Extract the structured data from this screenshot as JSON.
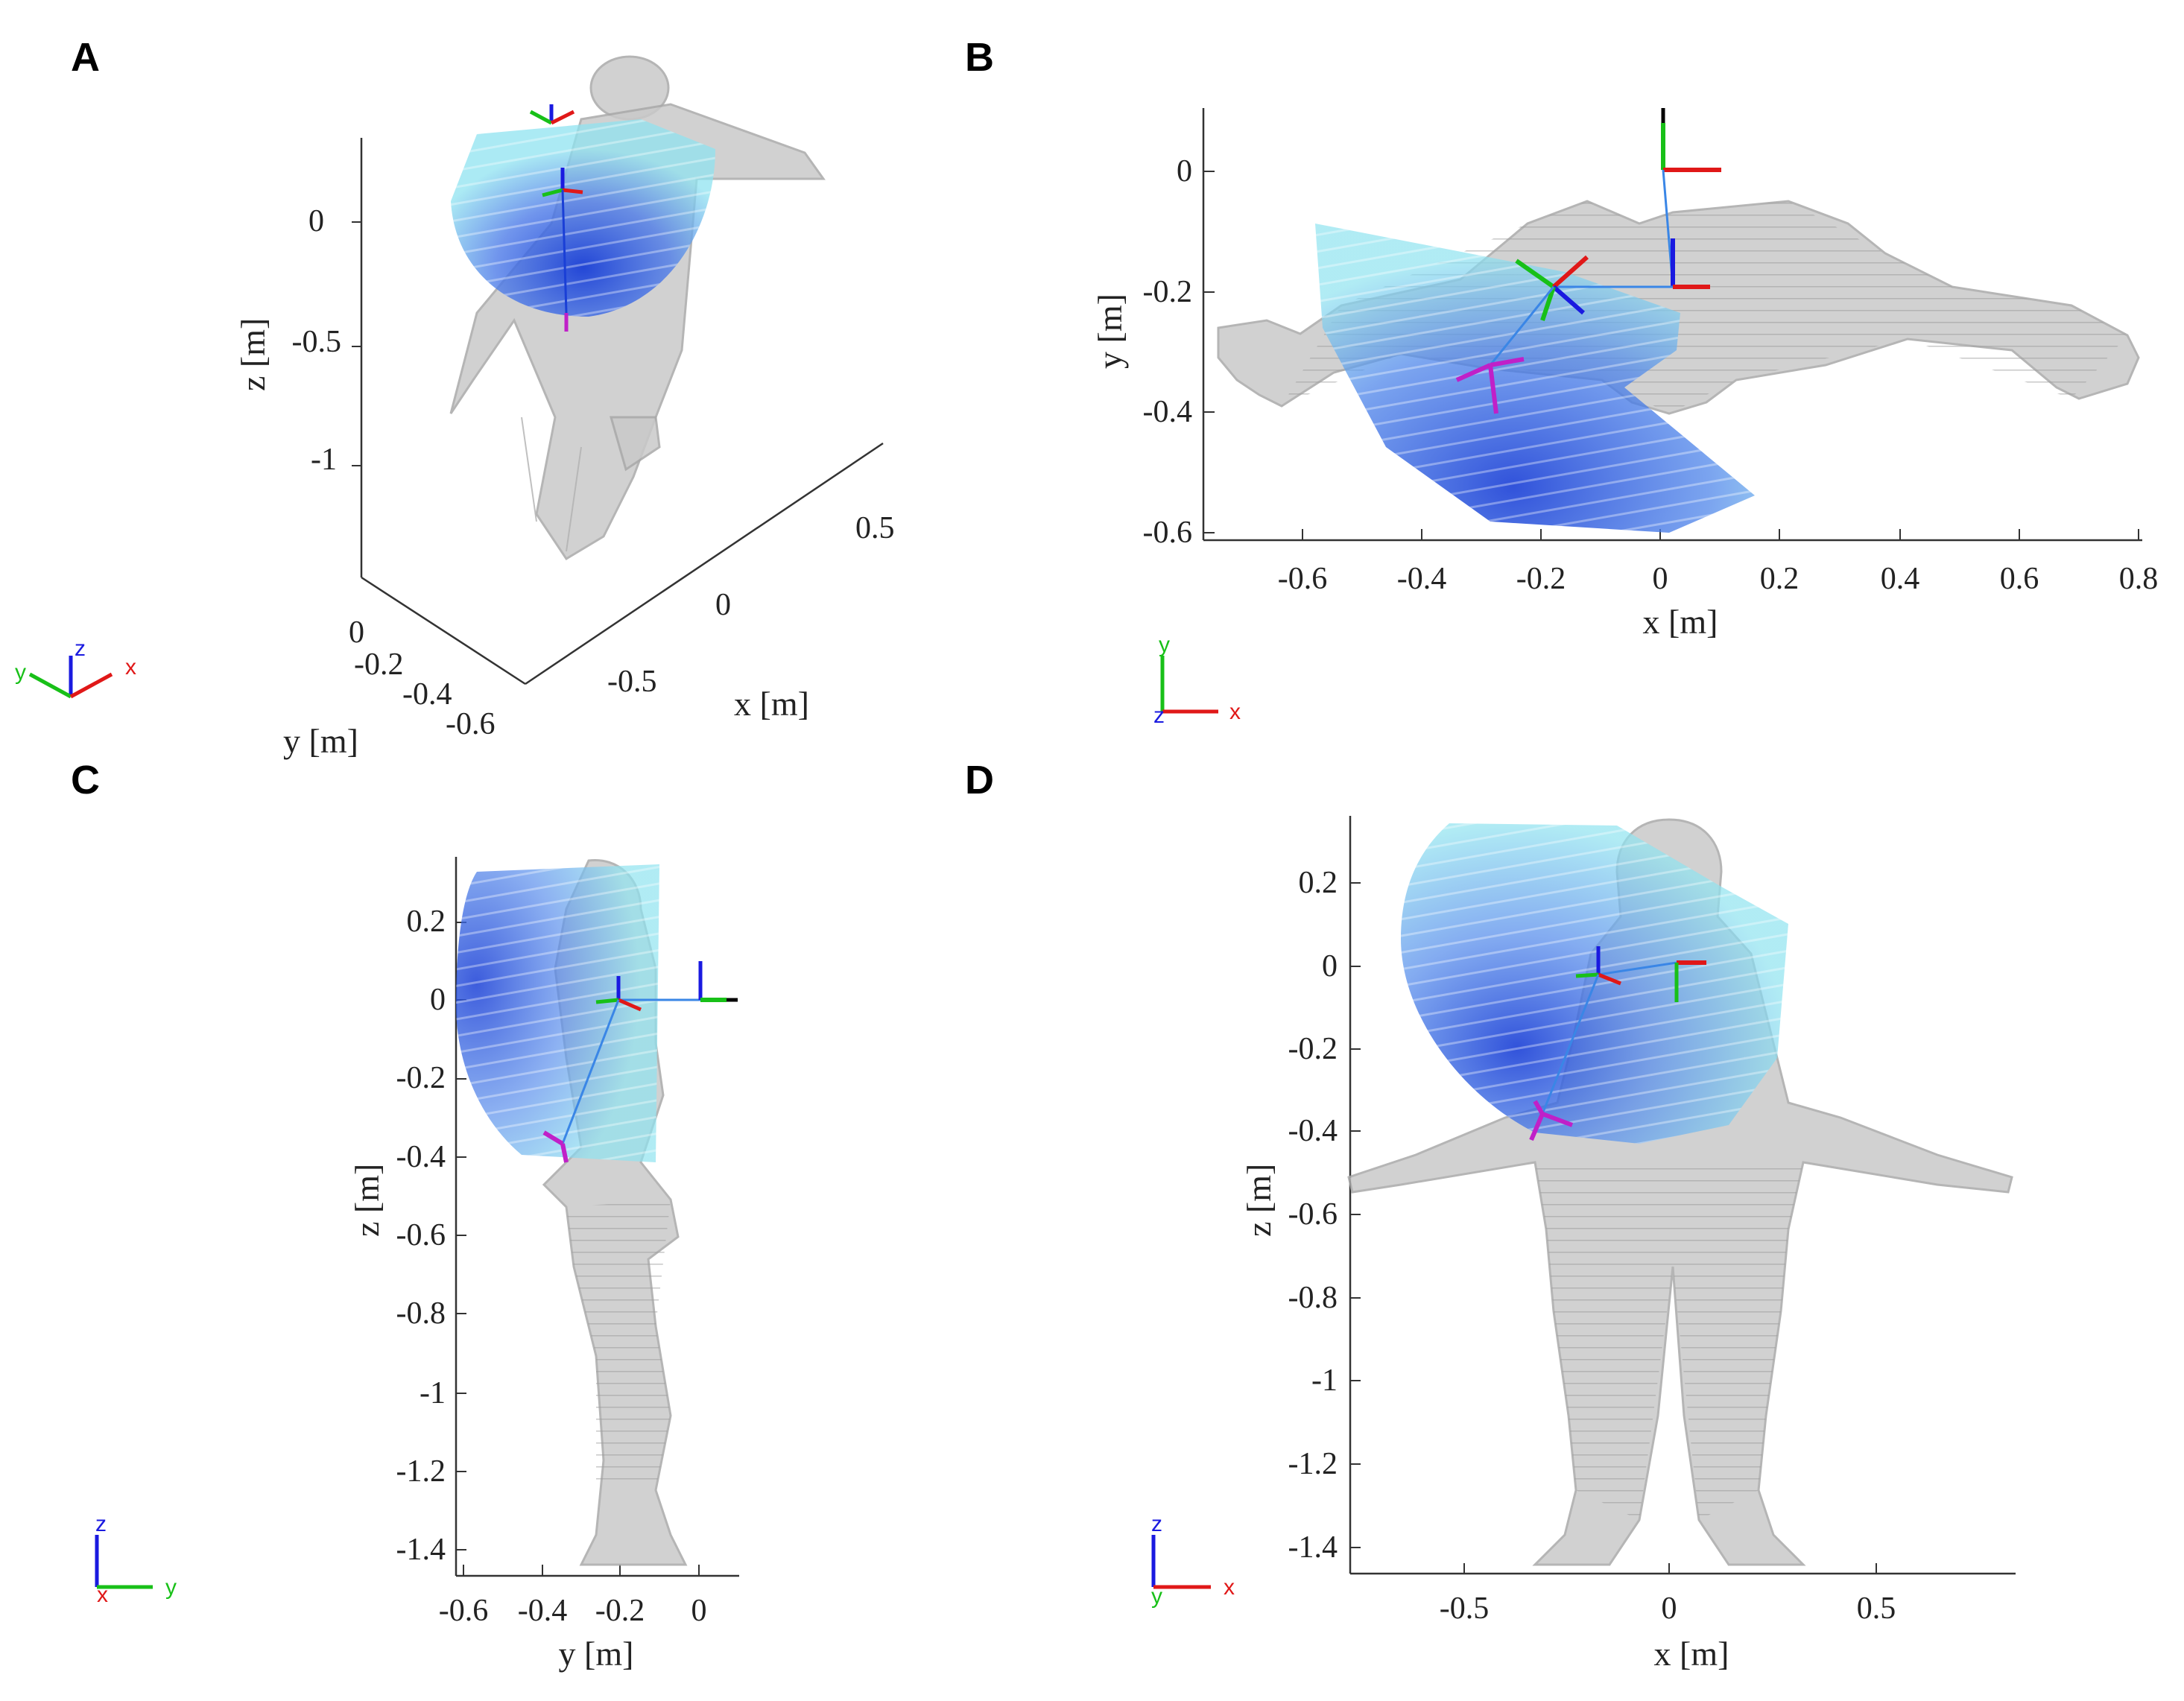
{
  "panels": {
    "A": {
      "label": "A",
      "z_ticks": [
        "0",
        "-0.5",
        "-1"
      ],
      "z_label": "z [m]",
      "x_ticks": [
        "0.5",
        "0",
        "-0.5"
      ],
      "x_label": "x [m]",
      "y_ticks": [
        "0",
        "-0.2",
        "-0.4",
        "-0.6"
      ],
      "y_label": "y [m]",
      "triad": {
        "a": "z",
        "b": "y",
        "c": "x"
      }
    },
    "B": {
      "label": "B",
      "x_ticks": [
        "-0.6",
        "-0.4",
        "-0.2",
        "0",
        "0.2",
        "0.4",
        "0.6",
        "0.8"
      ],
      "x_label": "x [m]",
      "y_ticks": [
        "0",
        "-0.2",
        "-0.4",
        "-0.6"
      ],
      "y_label": "y [m]",
      "triad": {
        "a": "y",
        "b": "z",
        "c": "x"
      }
    },
    "C": {
      "label": "C",
      "z_ticks": [
        "0.2",
        "0",
        "-0.2",
        "-0.4",
        "-0.6",
        "-0.8",
        "-1",
        "-1.2",
        "-1.4"
      ],
      "z_label": "z [m]",
      "y_ticks": [
        "-0.6",
        "-0.4",
        "-0.2",
        "0"
      ],
      "y_label": "y [m]",
      "triad": {
        "a": "z",
        "b": "x",
        "c": "y"
      }
    },
    "D": {
      "label": "D",
      "z_ticks": [
        "0.2",
        "0",
        "-0.2",
        "-0.4",
        "-0.6",
        "-0.8",
        "-1",
        "-1.2",
        "-1.4"
      ],
      "z_label": "z [m]",
      "x_ticks": [
        "-0.5",
        "0",
        "0.5"
      ],
      "x_label": "x [m]",
      "triad": {
        "a": "z",
        "b": "y",
        "c": "x"
      }
    }
  },
  "colors": {
    "workspace_light": "#8fe3f0",
    "workspace_dark": "#1a3fd6",
    "human_mesh": "#c4c4c4",
    "axis_x": "#e01818",
    "axis_y": "#18c018",
    "axis_z": "#1a1ae0",
    "marker": "#c020c8"
  }
}
